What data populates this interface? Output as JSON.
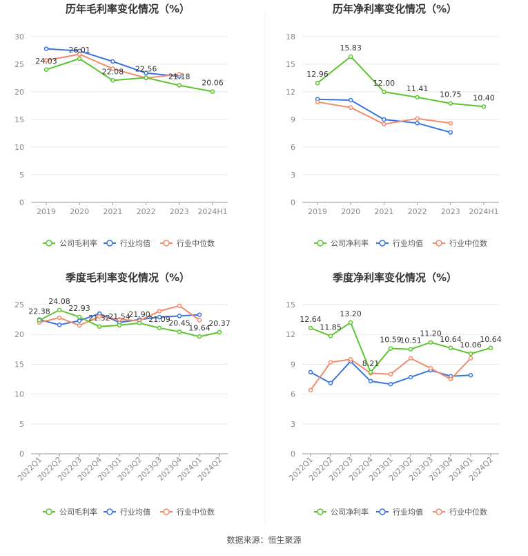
{
  "colors": {
    "company": "#5cc42d",
    "industry_avg": "#3a73e0",
    "industry_median": "#f28b6a"
  },
  "legend": {
    "company_gross": "公司毛利率",
    "company_net": "公司净利率",
    "industry_avg": "行业均值",
    "industry_median": "行业中位数"
  },
  "footer": {
    "source": "数据来源：恒生聚源"
  },
  "chart_data": [
    {
      "type": "line",
      "title": "历年毛利率变化情况（%）",
      "categories": [
        "2019",
        "2020",
        "2021",
        "2022",
        "2023",
        "2024H1"
      ],
      "ylim": [
        0,
        30
      ],
      "yticks": [
        0,
        5,
        10,
        15,
        20,
        25,
        30
      ],
      "legend_position": "bottom",
      "series": [
        {
          "name": "公司毛利率",
          "color": "#5cc42d",
          "values": [
            24.03,
            26.01,
            22.08,
            22.56,
            21.18,
            20.06
          ],
          "labels": [
            "24.03",
            "26.01",
            "22.08",
            "22.56",
            "21.18",
            "20.06"
          ]
        },
        {
          "name": "行业均值",
          "color": "#3a73e0",
          "values": [
            27.8,
            27.4,
            25.5,
            23.4,
            22.8,
            null
          ]
        },
        {
          "name": "行业中位数",
          "color": "#f28b6a",
          "values": [
            25.7,
            26.8,
            24.2,
            22.5,
            23.2,
            null
          ]
        }
      ]
    },
    {
      "type": "line",
      "title": "历年净利率变化情况（%）",
      "categories": [
        "2019",
        "2020",
        "2021",
        "2022",
        "2023",
        "2024H1"
      ],
      "ylim": [
        0,
        18
      ],
      "yticks": [
        0,
        3,
        6,
        9,
        12,
        15,
        18
      ],
      "legend_position": "bottom",
      "series": [
        {
          "name": "公司净利率",
          "color": "#5cc42d",
          "values": [
            12.96,
            15.83,
            12.0,
            11.41,
            10.75,
            10.4
          ],
          "labels": [
            "12.96",
            "15.83",
            "12.00",
            "11.41",
            "10.75",
            "10.40"
          ]
        },
        {
          "name": "行业均值",
          "color": "#3a73e0",
          "values": [
            11.2,
            11.1,
            9.0,
            8.6,
            7.6,
            null
          ]
        },
        {
          "name": "行业中位数",
          "color": "#f28b6a",
          "values": [
            10.9,
            10.3,
            8.5,
            9.1,
            8.6,
            null
          ]
        }
      ]
    },
    {
      "type": "line",
      "title": "季度毛利率变化情况（%）",
      "categories": [
        "2022Q1",
        "2022Q2",
        "2022Q3",
        "2022Q4",
        "2023Q1",
        "2023Q2",
        "2023Q3",
        "2023Q4",
        "2024Q1",
        "2024Q2"
      ],
      "ylim": [
        0,
        25
      ],
      "yticks": [
        0,
        5,
        10,
        15,
        20,
        25
      ],
      "rotate_xticks": true,
      "legend_position": "bottom",
      "series": [
        {
          "name": "公司毛利率",
          "color": "#5cc42d",
          "values": [
            22.38,
            24.08,
            22.93,
            21.32,
            21.54,
            21.9,
            21.09,
            20.45,
            19.64,
            20.37
          ],
          "labels": [
            "22.38",
            "24.08",
            "22.93",
            "21.32",
            "21.54",
            "21.90",
            "21.09",
            "20.45",
            "19.64",
            "20.37"
          ]
        },
        {
          "name": "行业均值",
          "color": "#3a73e0",
          "values": [
            22.5,
            21.6,
            22.3,
            23.5,
            22.0,
            22.5,
            22.9,
            23.1,
            23.3,
            null
          ]
        },
        {
          "name": "行业中位数",
          "color": "#f28b6a",
          "values": [
            22.0,
            22.8,
            21.5,
            23.0,
            22.5,
            22.3,
            23.9,
            24.8,
            22.4,
            null
          ]
        }
      ]
    },
    {
      "type": "line",
      "title": "季度净利率变化情况（%）",
      "categories": [
        "2022Q1",
        "2022Q2",
        "2022Q3",
        "2022Q4",
        "2023Q1",
        "2023Q2",
        "2023Q3",
        "2023Q4",
        "2024Q1",
        "2024Q2"
      ],
      "ylim": [
        0,
        15
      ],
      "yticks": [
        0,
        3,
        6,
        9,
        12,
        15
      ],
      "rotate_xticks": true,
      "legend_position": "bottom",
      "series": [
        {
          "name": "公司净利率",
          "color": "#5cc42d",
          "values": [
            12.64,
            11.85,
            13.2,
            8.21,
            10.59,
            10.51,
            11.2,
            10.64,
            10.06,
            10.64
          ],
          "labels": [
            "12.64",
            "11.85",
            "13.20",
            "8.21",
            "10.59",
            "10.51",
            "11.20",
            "10.64",
            "10.06",
            "10.64"
          ]
        },
        {
          "name": "行业均值",
          "color": "#3a73e0",
          "values": [
            8.2,
            7.1,
            9.3,
            7.3,
            7.0,
            7.7,
            8.4,
            7.8,
            7.9,
            null
          ]
        },
        {
          "name": "行业中位数",
          "color": "#f28b6a",
          "values": [
            6.4,
            9.2,
            9.5,
            8.1,
            8.0,
            9.6,
            8.6,
            7.5,
            9.6,
            null
          ]
        }
      ]
    }
  ]
}
